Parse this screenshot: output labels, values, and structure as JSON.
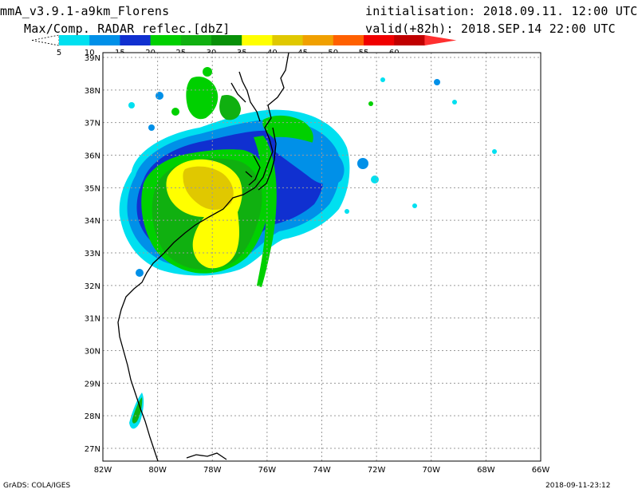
{
  "header": {
    "model_title": "mmA_v3.9.1-a9km_Florens",
    "field_title": "Max/Comp. RADAR reflec.[dbZ]",
    "init_label": "initialisation: 2018.09.11. 12:00 UTC",
    "valid_label": "valid(+82h): 2018.SEP.14 22:00 UTC"
  },
  "colorbar": {
    "ticks": [
      "5",
      "10",
      "15",
      "20",
      "25",
      "30",
      "35",
      "40",
      "45",
      "50",
      "55",
      "60"
    ],
    "colors": [
      "#00e0f0",
      "#0090e8",
      "#1030d0",
      "#00d000",
      "#10b010",
      "#089008",
      "#ffff00",
      "#e0c800",
      "#f0a000",
      "#ff6000",
      "#f00000",
      "#c00000",
      "#ff3030"
    ]
  },
  "map": {
    "lat_labels": [
      "39N",
      "38N",
      "37N",
      "36N",
      "35N",
      "34N",
      "33N",
      "32N",
      "31N",
      "30N",
      "29N",
      "28N",
      "27N"
    ],
    "lon_labels": [
      "82W",
      "80W",
      "78W",
      "76W",
      "74W",
      "72W",
      "70W",
      "68W",
      "66W"
    ],
    "reflectivity_colors": {
      "light_cyan": "#00e0f0",
      "blue": "#0090e8",
      "dark_blue": "#1030d0",
      "green": "#00d000",
      "green_mid": "#10b010",
      "yellow": "#ffff00",
      "gold": "#e0c800",
      "orange": "#e8b030"
    }
  },
  "footer": {
    "credit": "GrADS: COLA/IGES",
    "timestamp": "2018-09-11-23:12"
  }
}
